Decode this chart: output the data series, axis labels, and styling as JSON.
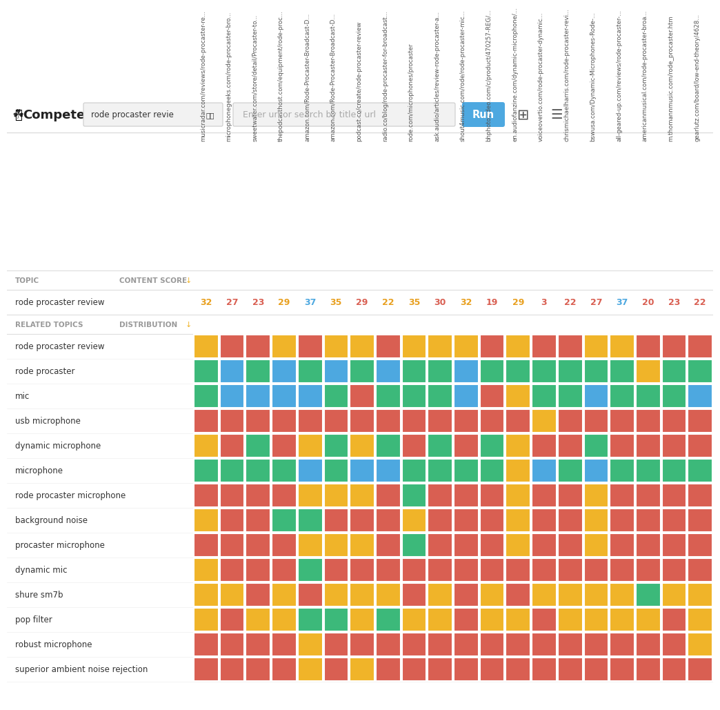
{
  "title": "Compete",
  "search_term": "rode procaster revie",
  "url_placeholder": "Enter url or search by title / url",
  "col_urls": [
    "musicradar.com/reviews/rode-procaster-re...",
    "microphonegeeks.com/rode-procaster-bro...",
    "sweetwater.com/store/detail/Procaster-to...",
    "thepodcasthost.com/equipment/rode-proc...",
    "amazon.com/Rode-Procaster-Broadcast-D...",
    "amazon.com/Rode-Procaster-Broadcast-D...",
    "podcast.co/create/rode-procaster-review",
    "radio.co/blog/rode-procaster-for-broadcast...",
    "rode.com/microphones/procaster",
    "ask.audio/articles/review-rode-procaster-a...",
    "shout4music.com/rode/rode-procaster-mic...",
    "bhphotovideo.com/c/product/470257-REG/...",
    "en.audiofanzine.com/dynamic-microphone/...",
    "voiceovertio.com/rode-procaster-dynamic...",
    "chrismichaelharris.com/rode-procaster-revi...",
    "bswusa.com/Dynamic-Microphones-Rode-...",
    "all-geared-up.com/reviews/rode-procaster-...",
    "americanmusical.com/rode-procaster-broa...",
    "m.thomannmusic.com/rode_procaster.htm",
    "gearlutz.com/board/low-end-theory/4628..."
  ],
  "content_scores": [
    32,
    27,
    23,
    29,
    37,
    35,
    29,
    22,
    35,
    30,
    32,
    19,
    29,
    3,
    22,
    27,
    37,
    20,
    23,
    22
  ],
  "score_colors": [
    "#E8A020",
    "#D95F52",
    "#D95F52",
    "#E8A020",
    "#4DA8E0",
    "#E8A020",
    "#D95F52",
    "#E8A020",
    "#E8A020",
    "#D95F52",
    "#E8A020",
    "#D95F52",
    "#E8A020",
    "#D95F52",
    "#D95F52",
    "#D95F52",
    "#4DA8E0",
    "#D95F52",
    "#D95F52",
    "#D95F52"
  ],
  "topics": [
    "rode procaster review",
    "rode procaster",
    "mic",
    "usb microphone",
    "dynamic microphone",
    "microphone",
    "rode procaster microphone",
    "background noise",
    "procaster microphone",
    "dynamic mic",
    "shure sm7b",
    "pop filter",
    "robust microphone",
    "superior ambient noise rejection"
  ],
  "heatmap": [
    [
      "O",
      "R",
      "R",
      "O",
      "R",
      "O",
      "O",
      "R",
      "O",
      "O",
      "O",
      "R",
      "O",
      "R",
      "R",
      "O",
      "O",
      "R",
      "R",
      "R"
    ],
    [
      "G",
      "B",
      "G",
      "B",
      "G",
      "B",
      "G",
      "B",
      "G",
      "G",
      "B",
      "G",
      "G",
      "G",
      "G",
      "G",
      "G",
      "O",
      "G",
      "G"
    ],
    [
      "G",
      "B",
      "B",
      "B",
      "B",
      "G",
      "R",
      "G",
      "G",
      "G",
      "B",
      "R",
      "O",
      "G",
      "G",
      "B",
      "G",
      "G",
      "G",
      "B"
    ],
    [
      "R",
      "R",
      "R",
      "R",
      "R",
      "R",
      "R",
      "R",
      "R",
      "R",
      "R",
      "R",
      "R",
      "O",
      "R",
      "R",
      "R",
      "R",
      "R",
      "R"
    ],
    [
      "O",
      "R",
      "G",
      "R",
      "O",
      "G",
      "O",
      "G",
      "R",
      "G",
      "R",
      "G",
      "O",
      "R",
      "R",
      "G",
      "R",
      "R",
      "R",
      "R"
    ],
    [
      "G",
      "G",
      "G",
      "G",
      "B",
      "G",
      "B",
      "B",
      "G",
      "G",
      "G",
      "G",
      "O",
      "B",
      "G",
      "B",
      "G",
      "G",
      "G",
      "G"
    ],
    [
      "R",
      "R",
      "R",
      "R",
      "O",
      "O",
      "O",
      "R",
      "G",
      "R",
      "R",
      "R",
      "O",
      "R",
      "R",
      "O",
      "R",
      "R",
      "R",
      "R"
    ],
    [
      "O",
      "R",
      "R",
      "G",
      "G",
      "R",
      "R",
      "R",
      "O",
      "R",
      "R",
      "R",
      "O",
      "R",
      "R",
      "O",
      "R",
      "R",
      "R",
      "R"
    ],
    [
      "R",
      "R",
      "R",
      "R",
      "O",
      "O",
      "O",
      "R",
      "G",
      "R",
      "R",
      "R",
      "O",
      "R",
      "R",
      "O",
      "R",
      "R",
      "R",
      "R"
    ],
    [
      "O",
      "R",
      "R",
      "R",
      "G",
      "R",
      "R",
      "R",
      "R",
      "R",
      "R",
      "R",
      "R",
      "R",
      "R",
      "R",
      "R",
      "R",
      "R",
      "R"
    ],
    [
      "O",
      "O",
      "R",
      "O",
      "R",
      "O",
      "O",
      "O",
      "R",
      "O",
      "R",
      "O",
      "R",
      "O",
      "O",
      "O",
      "O",
      "G",
      "O",
      "O"
    ],
    [
      "O",
      "R",
      "O",
      "O",
      "G",
      "G",
      "O",
      "G",
      "O",
      "O",
      "R",
      "O",
      "O",
      "R",
      "O",
      "O",
      "O",
      "O",
      "R",
      "O"
    ],
    [
      "R",
      "R",
      "R",
      "R",
      "O",
      "R",
      "R",
      "R",
      "R",
      "R",
      "R",
      "R",
      "R",
      "R",
      "R",
      "R",
      "R",
      "R",
      "R",
      "O"
    ],
    [
      "R",
      "R",
      "R",
      "R",
      "O",
      "R",
      "O",
      "R",
      "R",
      "R",
      "R",
      "R",
      "R",
      "R",
      "R",
      "R",
      "R",
      "R",
      "R",
      "R"
    ]
  ],
  "color_map": {
    "R": "#D95F52",
    "O": "#F0B429",
    "G": "#3CB97A",
    "B": "#4DA8E0"
  },
  "bg_color": "#FFFFFF"
}
